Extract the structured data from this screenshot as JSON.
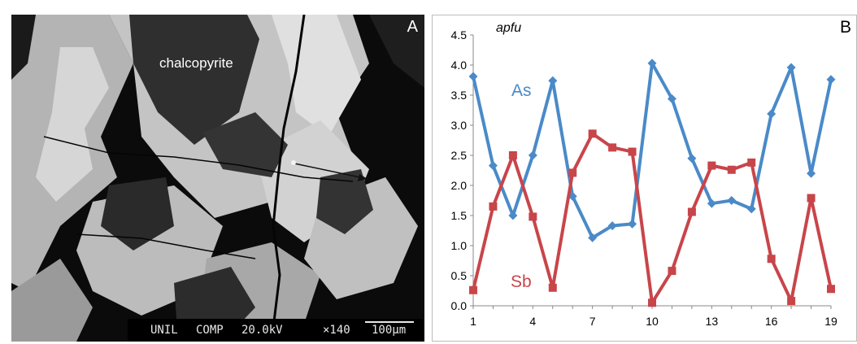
{
  "panel_a": {
    "label": "A",
    "mineral_label": "chalcopyrite",
    "sem_bar": {
      "lab": "UNIL",
      "mode": "COMP",
      "voltage": "20.0kV",
      "magnification": "×140",
      "scale": "100μm"
    },
    "colors": {
      "background": "#0b0b0b",
      "dark_phase": "#2f2f2f",
      "bright_phase": "#c8c8c8"
    }
  },
  "panel_b": {
    "label": "B"
  },
  "chart_data": {
    "type": "line",
    "ylabel": "apfu",
    "ylim": [
      0,
      4.5
    ],
    "yticks": [
      "0.0",
      "0.5",
      "1.0",
      "1.5",
      "2.0",
      "2.5",
      "3.0",
      "3.5",
      "4.0",
      "4.5"
    ],
    "xlim": [
      1,
      19
    ],
    "xticks": [
      "1",
      "4",
      "7",
      "10",
      "13",
      "16",
      "19"
    ],
    "grid": false,
    "x": [
      1,
      2,
      3,
      4,
      5,
      6,
      7,
      8,
      9,
      10,
      11,
      12,
      13,
      14,
      15,
      16,
      17,
      18,
      19
    ],
    "series": [
      {
        "name": "As",
        "color": "#4a8ac8",
        "marker": "diamond",
        "values": [
          3.81,
          2.33,
          1.5,
          2.5,
          3.74,
          1.82,
          1.13,
          1.33,
          1.36,
          4.03,
          3.44,
          2.45,
          1.7,
          1.75,
          1.61,
          3.19,
          3.96,
          2.2,
          3.76
        ]
      },
      {
        "name": "Sb",
        "color": "#c8454a",
        "marker": "square",
        "values": [
          0.26,
          1.65,
          2.5,
          1.48,
          0.3,
          2.21,
          2.86,
          2.63,
          2.56,
          0.05,
          0.58,
          1.56,
          2.33,
          2.26,
          2.38,
          0.78,
          0.08,
          1.79,
          0.28
        ]
      }
    ]
  }
}
